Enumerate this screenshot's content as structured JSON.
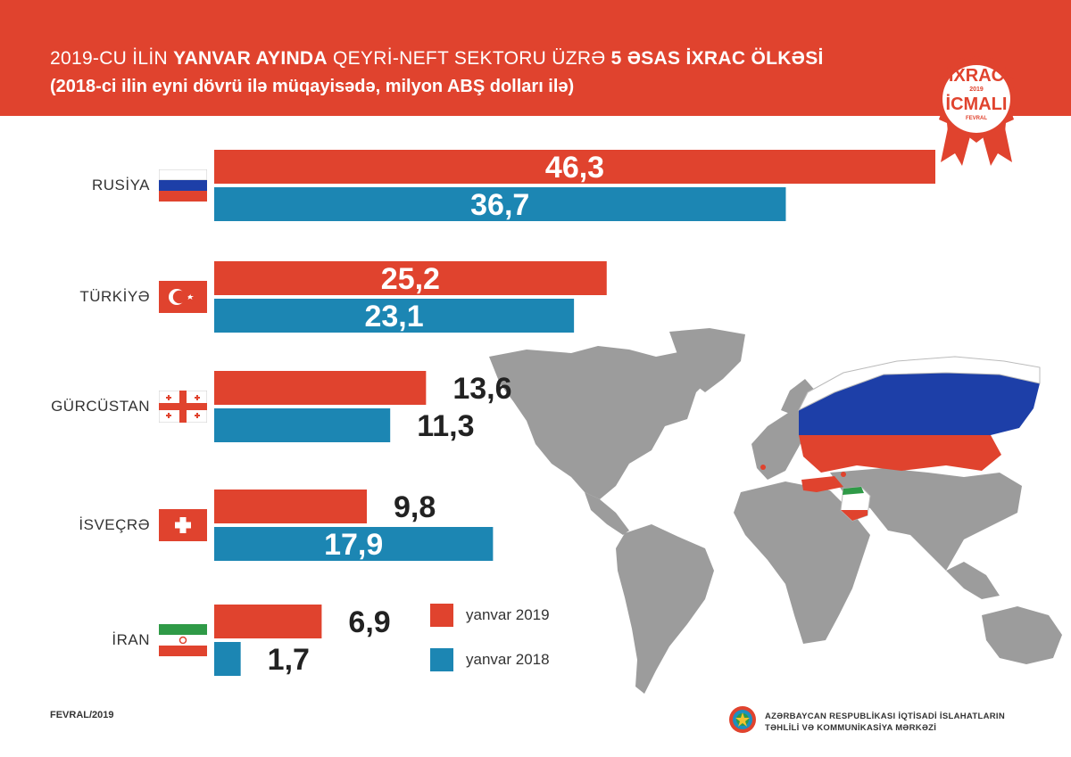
{
  "header": {
    "title_part1": "2019-CU İLİN ",
    "title_bold1": "YANVAR AYINDA",
    "title_part2": "  QEYRİ-NEFT SEKTORU ÜZRƏ ",
    "title_bold2": "5 ƏSAS İXRAC ÖLKƏSİ",
    "subtitle": "(2018-ci ilin eyni dövrü ilə müqayisədə, milyon ABŞ dolları ilə)"
  },
  "badge": {
    "year": "2019",
    "line1": "İXRAC",
    "line2": "İCMALI",
    "month": "FEVRAL"
  },
  "chart_data": {
    "type": "bar",
    "orientation": "horizontal",
    "categories": [
      "RUSİYA",
      "TÜRKİYƏ",
      "GÜRCÜSTAN",
      "İSVEÇRƏ",
      "İRAN"
    ],
    "series": [
      {
        "name": "yanvar 2019",
        "values": [
          46.3,
          25.2,
          13.6,
          9.8,
          6.9
        ],
        "labels": [
          "46,3",
          "25,2",
          "13,6",
          "9,8",
          "6,9"
        ]
      },
      {
        "name": "yanvar 2018",
        "values": [
          36.7,
          23.1,
          11.3,
          17.9,
          1.7
        ],
        "labels": [
          "36,7",
          "23,1",
          "11,3",
          "17,9",
          "1,7"
        ]
      }
    ],
    "flags": [
      "russia-flag-icon",
      "turkey-flag-icon",
      "georgia-flag-icon",
      "switzerland-flag-icon",
      "iran-flag-icon"
    ],
    "legend_position": "bottom-center"
  },
  "colors": {
    "header": "#e0432e",
    "series_2019": "#e0432e",
    "series_2018": "#1c86b3",
    "map": "#9c9c9c"
  },
  "map": {
    "icon": "world-map-icon"
  },
  "footer": {
    "date": "FEVRAL/2019",
    "org_line1": "AZƏRBAYCAN RESPUBLİKASI İQTİSADİ İSLAHATLARIN",
    "org_line2": "TƏHLİLİ VƏ KOMMUNİKASİYA MƏRKƏZİ",
    "emblem": "azerbaijan-emblem-icon"
  }
}
